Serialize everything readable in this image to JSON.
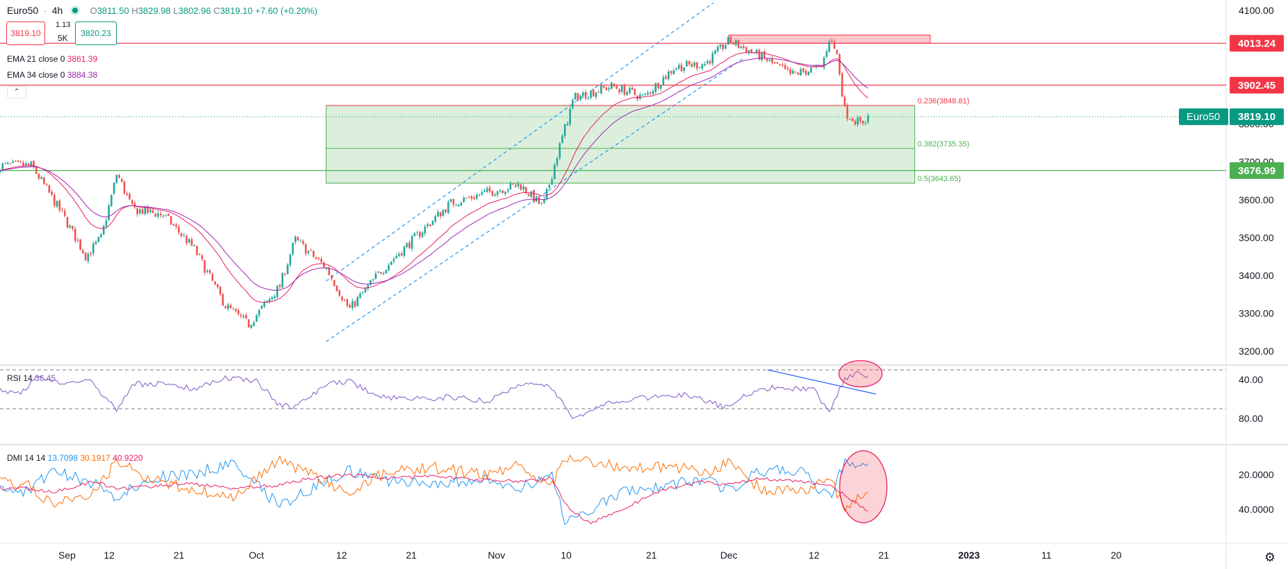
{
  "header": {
    "symbol": "Euro50",
    "interval": "4h",
    "ohlc": [
      {
        "label": "O",
        "value": "3811.50"
      },
      {
        "label": "H",
        "value": "3829.98"
      },
      {
        "label": "L",
        "value": "3802.96"
      },
      {
        "label": "C",
        "value": "3819.10"
      }
    ],
    "change": "+7.60 (+0.20%)",
    "sell_price": "3819.10",
    "spread": "1.13",
    "qty": "5K",
    "buy_price": "3820.23",
    "collapse_icon": "chevron-up-icon"
  },
  "indicators": {
    "ema21": {
      "label": "EMA 21 close 0",
      "value": "3861.39",
      "color": "#e91e63"
    },
    "ema34": {
      "label": "EMA 34 close 0",
      "value": "3884.38",
      "color": "#9c27b0"
    },
    "rsi": {
      "label": "RSI 14",
      "value": "36.45",
      "color": "#7e57c2"
    },
    "dmi": {
      "label": "DMI 14 14",
      "values": [
        "13.7098",
        "30.1917",
        "40.9220"
      ],
      "colors": [
        "#2196f3",
        "#ff6d00",
        "#e91e63"
      ]
    }
  },
  "colors": {
    "up": "#26a69a",
    "down": "#ef5350",
    "accent_teal": "#089981",
    "resistance": "#f23645",
    "support": "#4caf50"
  },
  "settings_icon": "gear-icon",
  "chart_data": [
    {
      "type": "candlestick",
      "title": "Euro50 · 4h",
      "x_ticks": [
        "Sep",
        "12",
        "21",
        "Oct",
        "12",
        "21",
        "Nov",
        "10",
        "21",
        "Dec",
        "12",
        "21",
        "2023",
        "11",
        "20"
      ],
      "y_ticks": [
        "4100.00",
        "4000.00",
        "3900.00",
        "3800.00",
        "3700.00",
        "3600.00",
        "3500.00",
        "3400.00",
        "3300.00",
        "3200.00"
      ],
      "ylim": [
        3170,
        4110
      ],
      "price_path": [
        {
          "x": "Sep 2",
          "close": 3690
        },
        {
          "x": "Sep 6",
          "close": 3560
        },
        {
          "x": "Sep 9",
          "close": 3450
        },
        {
          "x": "Sep 11",
          "close": 3500
        },
        {
          "x": "Sep 13",
          "close": 3670
        },
        {
          "x": "Sep 15",
          "close": 3575
        },
        {
          "x": "Sep 19",
          "close": 3560
        },
        {
          "x": "Sep 23",
          "close": 3470
        },
        {
          "x": "Sep 27",
          "close": 3320
        },
        {
          "x": "Sep 30",
          "close": 3270
        },
        {
          "x": "Oct 4",
          "close": 3370
        },
        {
          "x": "Oct 6",
          "close": 3495
        },
        {
          "x": "Oct 10",
          "close": 3420
        },
        {
          "x": "Oct 13",
          "close": 3310
        },
        {
          "x": "Oct 17",
          "close": 3410
        },
        {
          "x": "Oct 21",
          "close": 3490
        },
        {
          "x": "Oct 26",
          "close": 3590
        },
        {
          "x": "Oct 31",
          "close": 3620
        },
        {
          "x": "Nov 4",
          "close": 3640
        },
        {
          "x": "Nov 7",
          "close": 3580
        },
        {
          "x": "Nov 9",
          "close": 3730
        },
        {
          "x": "Nov 11",
          "close": 3870
        },
        {
          "x": "Nov 16",
          "close": 3900
        },
        {
          "x": "Nov 20",
          "close": 3870
        },
        {
          "x": "Nov 24",
          "close": 3950
        },
        {
          "x": "Nov 28",
          "close": 3960
        },
        {
          "x": "Dec 1",
          "close": 4020
        },
        {
          "x": "Dec 5",
          "close": 3980
        },
        {
          "x": "Dec 9",
          "close": 3930
        },
        {
          "x": "Dec 13",
          "close": 3950
        },
        {
          "x": "Dec 14",
          "close": 4030
        },
        {
          "x": "Dec 15",
          "close": 3980
        },
        {
          "x": "Dec 16",
          "close": 3830
        },
        {
          "x": "Dec 18",
          "close": 3800
        },
        {
          "x": "Dec 19",
          "close": 3819.1
        }
      ],
      "horizontal_levels": [
        {
          "label": "4013.24",
          "price": 4013.24,
          "color": "#f23645"
        },
        {
          "label": "3902.45",
          "price": 3902.45,
          "color": "#f23645"
        },
        {
          "label": "3676.99",
          "price": 3676.99,
          "color": "#4caf50"
        }
      ],
      "current_price": {
        "name": "Euro50",
        "value": "3819.10",
        "price": 3819.1
      },
      "fib_levels": [
        {
          "label": "0.236(3848.81)",
          "ratio": 0.236,
          "price": 3848.81,
          "color": "#f23645"
        },
        {
          "label": "0.382(3735.35)",
          "ratio": 0.382,
          "price": 3735.35,
          "color": "#4caf50"
        },
        {
          "label": "0.5(3643.65)",
          "ratio": 0.5,
          "price": 3643.65,
          "color": "#4caf50"
        }
      ],
      "zones": [
        {
          "name": "supply-zone",
          "from": "Dec 1",
          "to": "Dec 27",
          "low": 4013.24,
          "high": 4035,
          "color": "#f23645"
        },
        {
          "name": "fib-zone",
          "from": "Oct 10",
          "to": "Dec 25",
          "low": 3643.65,
          "high": 3848.81,
          "color": "#4caf50"
        }
      ],
      "channel": [
        {
          "from": {
            "x": "Oct 10",
            "y": 3385
          },
          "to": {
            "x": "Nov 29",
            "y": 4120
          }
        },
        {
          "from": {
            "x": "Oct 10",
            "y": 3225
          },
          "to": {
            "x": "Dec 3",
            "y": 3975
          }
        }
      ],
      "ema_21_end": 3861.39,
      "ema_34_end": 3884.38
    },
    {
      "type": "line",
      "title": "RSI 14",
      "y_ticks": [
        "80.00",
        "40.00"
      ],
      "ylim": [
        28,
        88
      ],
      "band": [
        30,
        70
      ],
      "series": [
        {
          "name": "RSI 14",
          "points": [
            {
              "x": "Sep 1",
              "y": 52
            },
            {
              "x": "Sep 3",
              "y": 35
            },
            {
              "x": "Sep 6",
              "y": 47
            },
            {
              "x": "Sep 9",
              "y": 38
            },
            {
              "x": "Sep 13",
              "y": 72
            },
            {
              "x": "Sep 15",
              "y": 45
            },
            {
              "x": "Sep 19",
              "y": 44
            },
            {
              "x": "Sep 23",
              "y": 50
            },
            {
              "x": "Sep 27",
              "y": 38
            },
            {
              "x": "Oct 1",
              "y": 42
            },
            {
              "x": "Oct 4",
              "y": 66
            },
            {
              "x": "Oct 6",
              "y": 68
            },
            {
              "x": "Oct 10",
              "y": 45
            },
            {
              "x": "Oct 13",
              "y": 42
            },
            {
              "x": "Oct 17",
              "y": 58
            },
            {
              "x": "Oct 21",
              "y": 60
            },
            {
              "x": "Oct 26",
              "y": 58
            },
            {
              "x": "Oct 31",
              "y": 62
            },
            {
              "x": "Nov 4",
              "y": 45
            },
            {
              "x": "Nov 7",
              "y": 43
            },
            {
              "x": "Nov 9",
              "y": 58
            },
            {
              "x": "Nov 11",
              "y": 80
            },
            {
              "x": "Nov 13",
              "y": 72
            },
            {
              "x": "Nov 16",
              "y": 62
            },
            {
              "x": "Nov 21",
              "y": 58
            },
            {
              "x": "Nov 26",
              "y": 56
            },
            {
              "x": "Dec 1",
              "y": 70
            },
            {
              "x": "Dec 3",
              "y": 55
            },
            {
              "x": "Dec 7",
              "y": 48
            },
            {
              "x": "Dec 12",
              "y": 50
            },
            {
              "x": "Dec 14",
              "y": 76
            },
            {
              "x": "Dec 15",
              "y": 55
            },
            {
              "x": "Dec 16",
              "y": 38
            },
            {
              "x": "Dec 18",
              "y": 33
            },
            {
              "x": "Dec 19",
              "y": 36.45
            }
          ]
        }
      ],
      "trendline": {
        "from": {
          "x": "Dec 6",
          "y": 30
        },
        "to": {
          "x": "Dec 20",
          "y": 55
        }
      }
    },
    {
      "type": "line",
      "title": "DMI 14 14",
      "y_ticks": [
        "40.0000",
        "20.0000"
      ],
      "ylim": [
        5,
        55
      ],
      "series": [
        {
          "name": "+DI",
          "points": [
            {
              "x": "Sep 1",
              "y": 30
            },
            {
              "x": "Sep 5",
              "y": 18
            },
            {
              "x": "Sep 10",
              "y": 25
            },
            {
              "x": "Sep 13",
              "y": 34
            },
            {
              "x": "Sep 17",
              "y": 22
            },
            {
              "x": "Sep 22",
              "y": 20
            },
            {
              "x": "Sep 28",
              "y": 14
            },
            {
              "x": "Oct 4",
              "y": 38
            },
            {
              "x": "Oct 8",
              "y": 28
            },
            {
              "x": "Oct 13",
              "y": 18
            },
            {
              "x": "Oct 18",
              "y": 24
            },
            {
              "x": "Oct 24",
              "y": 26
            },
            {
              "x": "Oct 30",
              "y": 22
            },
            {
              "x": "Nov 4",
              "y": 28
            },
            {
              "x": "Nov 8",
              "y": 18
            },
            {
              "x": "Nov 10",
              "y": 48
            },
            {
              "x": "Nov 13",
              "y": 42
            },
            {
              "x": "Nov 17",
              "y": 30
            },
            {
              "x": "Nov 23",
              "y": 26
            },
            {
              "x": "Nov 28",
              "y": 22
            },
            {
              "x": "Dec 1",
              "y": 30
            },
            {
              "x": "Dec 5",
              "y": 18
            },
            {
              "x": "Dec 10",
              "y": 17
            },
            {
              "x": "Dec 14",
              "y": 34
            },
            {
              "x": "Dec 16",
              "y": 13
            },
            {
              "x": "Dec 19",
              "y": 13.71
            }
          ]
        },
        {
          "name": "-DI",
          "points": [
            {
              "x": "Sep 1",
              "y": 25
            },
            {
              "x": "Sep 5",
              "y": 38
            },
            {
              "x": "Sep 10",
              "y": 30
            },
            {
              "x": "Sep 13",
              "y": 12
            },
            {
              "x": "Sep 17",
              "y": 22
            },
            {
              "x": "Sep 22",
              "y": 28
            },
            {
              "x": "Sep 28",
              "y": 32
            },
            {
              "x": "Oct 4",
              "y": 12
            },
            {
              "x": "Oct 8",
              "y": 20
            },
            {
              "x": "Oct 13",
              "y": 30
            },
            {
              "x": "Oct 18",
              "y": 18
            },
            {
              "x": "Oct 24",
              "y": 16
            },
            {
              "x": "Oct 30",
              "y": 20
            },
            {
              "x": "Nov 4",
              "y": 14
            },
            {
              "x": "Nov 8",
              "y": 26
            },
            {
              "x": "Nov 10",
              "y": 10
            },
            {
              "x": "Nov 13",
              "y": 12
            },
            {
              "x": "Nov 17",
              "y": 16
            },
            {
              "x": "Nov 23",
              "y": 15
            },
            {
              "x": "Nov 28",
              "y": 18
            },
            {
              "x": "Dec 1",
              "y": 14
            },
            {
              "x": "Dec 5",
              "y": 28
            },
            {
              "x": "Dec 10",
              "y": 30
            },
            {
              "x": "Dec 14",
              "y": 22
            },
            {
              "x": "Dec 16",
              "y": 40
            },
            {
              "x": "Dec 19",
              "y": 30.19
            }
          ]
        },
        {
          "name": "ADX",
          "points": [
            {
              "x": "Sep 1",
              "y": 28
            },
            {
              "x": "Sep 5",
              "y": 30
            },
            {
              "x": "Sep 10",
              "y": 24
            },
            {
              "x": "Sep 13",
              "y": 28
            },
            {
              "x": "Sep 17",
              "y": 27
            },
            {
              "x": "Sep 22",
              "y": 25
            },
            {
              "x": "Sep 28",
              "y": 28
            },
            {
              "x": "Oct 4",
              "y": 26
            },
            {
              "x": "Oct 8",
              "y": 22
            },
            {
              "x": "Oct 13",
              "y": 20
            },
            {
              "x": "Oct 18",
              "y": 22
            },
            {
              "x": "Oct 24",
              "y": 21
            },
            {
              "x": "Oct 30",
              "y": 23
            },
            {
              "x": "Nov 4",
              "y": 24
            },
            {
              "x": "Nov 8",
              "y": 22
            },
            {
              "x": "Nov 10",
              "y": 38
            },
            {
              "x": "Nov 13",
              "y": 48
            },
            {
              "x": "Nov 17",
              "y": 40
            },
            {
              "x": "Nov 23",
              "y": 28
            },
            {
              "x": "Nov 28",
              "y": 24
            },
            {
              "x": "Dec 1",
              "y": 26
            },
            {
              "x": "Dec 5",
              "y": 22
            },
            {
              "x": "Dec 10",
              "y": 24
            },
            {
              "x": "Dec 14",
              "y": 26
            },
            {
              "x": "Dec 16",
              "y": 32
            },
            {
              "x": "Dec 19",
              "y": 40.92
            }
          ]
        }
      ]
    }
  ]
}
